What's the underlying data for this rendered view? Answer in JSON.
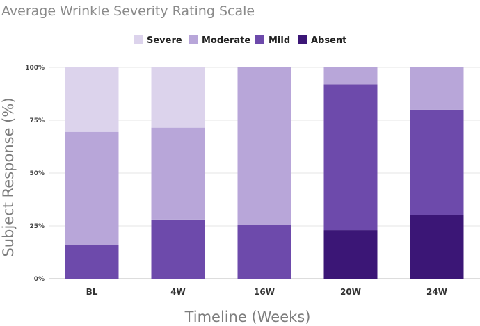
{
  "chart_data": {
    "type": "bar",
    "stacked": true,
    "title": "Average Wrinkle Severity Rating Scale",
    "xlabel": "Timeline (Weeks)",
    "ylabel": "Subject Response (%)",
    "categories": [
      "BL",
      "4W",
      "16W",
      "20W",
      "24W"
    ],
    "ylim": [
      0,
      100
    ],
    "yticks": [
      0,
      25,
      50,
      75,
      100
    ],
    "ytick_labels": [
      "0%",
      "25%",
      "50%",
      "75%",
      "100%"
    ],
    "legend_position": "top-center",
    "grid": true,
    "series": [
      {
        "name": "Absent",
        "color": "#3b1676",
        "values": [
          0,
          0,
          0,
          23,
          30
        ]
      },
      {
        "name": "Mild",
        "color": "#6d4aab",
        "values": [
          16,
          28,
          25.5,
          69,
          50
        ]
      },
      {
        "name": "Moderate",
        "color": "#b8a6d9",
        "values": [
          53.5,
          43.5,
          74.5,
          8,
          20
        ]
      },
      {
        "name": "Severe",
        "color": "#dcd3ec",
        "values": [
          30.5,
          28.5,
          0,
          0,
          0
        ]
      }
    ],
    "legend_order": [
      "Severe",
      "Moderate",
      "Mild",
      "Absent"
    ]
  }
}
